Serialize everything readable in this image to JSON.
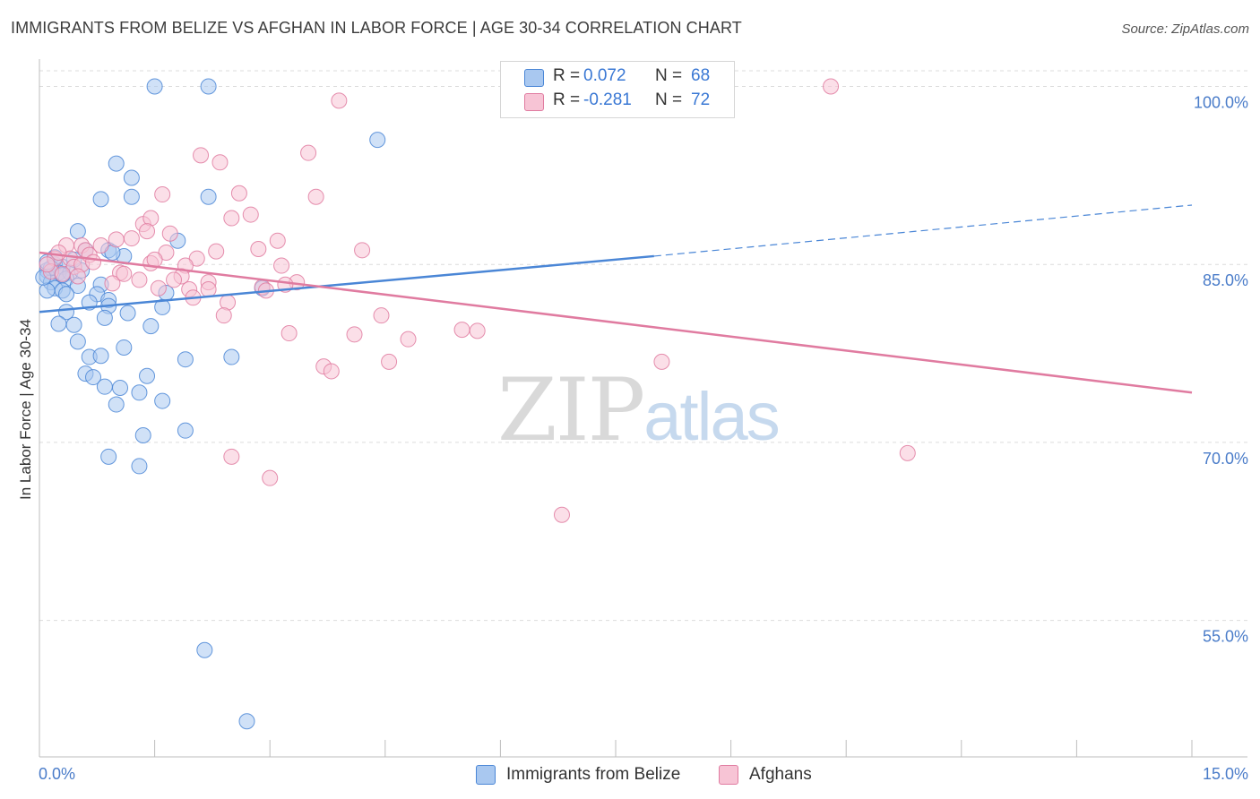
{
  "title": "IMMIGRANTS FROM BELIZE VS AFGHAN IN LABOR FORCE | AGE 30-34 CORRELATION CHART",
  "source": "Source: ZipAtlas.com",
  "watermark": {
    "zip": "ZIP",
    "atlas": "atlas"
  },
  "legend": {
    "rows": [
      {
        "r_label": "R =",
        "r_value": "0.072",
        "n_label": "N =",
        "n_value": "68",
        "color": "#a9c8f0",
        "border": "#4a86d6"
      },
      {
        "r_label": "R =",
        "r_value": "-0.281",
        "n_label": "N =",
        "n_value": "72",
        "color": "#f7c4d5",
        "border": "#e07ba0"
      }
    ]
  },
  "bottom_legend": [
    {
      "label": "Immigrants from Belize",
      "color": "#a9c8f0",
      "border": "#4a86d6"
    },
    {
      "label": "Afghans",
      "color": "#f7c4d5",
      "border": "#e07ba0"
    }
  ],
  "chart_data": {
    "type": "scatter",
    "title": "IMMIGRANTS FROM BELIZE VS AFGHAN IN LABOR FORCE | AGE 30-34 CORRELATION CHART",
    "xlabel": "",
    "ylabel": "In Labor Force | Age 30-34",
    "xlim": [
      0,
      15
    ],
    "ylim": [
      43.5,
      102
    ],
    "x_tick_labels": [
      {
        "value": 0,
        "label": "0.0%"
      },
      {
        "value": 15,
        "label": "15.0%"
      }
    ],
    "y_ticks": [
      {
        "value": 100,
        "label": "100.0%"
      },
      {
        "value": 85,
        "label": "85.0%"
      },
      {
        "value": 70,
        "label": "70.0%"
      },
      {
        "value": 55,
        "label": "55.0%"
      }
    ],
    "x_minor_ticks": [
      1.5,
      3,
      4.5,
      6,
      7.5,
      9,
      10.5,
      12,
      13.5,
      15
    ],
    "series": [
      {
        "name": "Immigrants from Belize",
        "color": "#4a86d6",
        "fill": "#a9c8f0",
        "trend": {
          "x0": 0,
          "y0": 81.0,
          "x1": 8.0,
          "y1": 85.7,
          "dash_x1": 15,
          "dash_y1": 90.0
        },
        "points": [
          [
            1.5,
            100
          ],
          [
            2.2,
            100
          ],
          [
            4.4,
            95.5
          ],
          [
            1.0,
            93.5
          ],
          [
            1.2,
            92.3
          ],
          [
            0.8,
            90.5
          ],
          [
            1.2,
            90.7
          ],
          [
            2.2,
            90.7
          ],
          [
            0.5,
            87.8
          ],
          [
            1.8,
            87.0
          ],
          [
            0.9,
            86.2
          ],
          [
            0.6,
            86.2
          ],
          [
            1.1,
            85.7
          ],
          [
            0.2,
            85.0
          ],
          [
            0.3,
            84.8
          ],
          [
            0.1,
            84.5
          ],
          [
            0.25,
            84.3
          ],
          [
            0.4,
            84.3
          ],
          [
            0.55,
            84.5
          ],
          [
            0.1,
            84.0
          ],
          [
            0.35,
            83.8
          ],
          [
            0.15,
            83.5
          ],
          [
            0.8,
            83.3
          ],
          [
            0.5,
            83.2
          ],
          [
            0.2,
            83.0
          ],
          [
            0.3,
            82.8
          ],
          [
            0.1,
            82.8
          ],
          [
            0.35,
            82.5
          ],
          [
            0.75,
            82.5
          ],
          [
            1.65,
            82.6
          ],
          [
            0.9,
            82.0
          ],
          [
            0.65,
            81.8
          ],
          [
            0.9,
            81.5
          ],
          [
            1.6,
            81.4
          ],
          [
            0.35,
            81.0
          ],
          [
            1.15,
            80.9
          ],
          [
            0.85,
            80.5
          ],
          [
            0.25,
            80.0
          ],
          [
            0.45,
            79.9
          ],
          [
            1.45,
            79.8
          ],
          [
            0.5,
            78.5
          ],
          [
            1.1,
            78.0
          ],
          [
            0.65,
            77.2
          ],
          [
            0.8,
            77.3
          ],
          [
            1.9,
            77.0
          ],
          [
            2.5,
            77.2
          ],
          [
            0.6,
            75.8
          ],
          [
            1.4,
            75.6
          ],
          [
            0.7,
            75.5
          ],
          [
            0.85,
            74.7
          ],
          [
            1.05,
            74.6
          ],
          [
            1.3,
            74.2
          ],
          [
            1.6,
            73.5
          ],
          [
            1.0,
            73.2
          ],
          [
            1.35,
            70.6
          ],
          [
            1.9,
            71.0
          ],
          [
            0.9,
            68.8
          ],
          [
            1.3,
            68.0
          ],
          [
            2.9,
            83.0
          ],
          [
            0.95,
            86.0
          ],
          [
            0.2,
            85.6
          ],
          [
            0.45,
            85.4
          ],
          [
            0.15,
            84.7
          ],
          [
            0.05,
            83.9
          ],
          [
            0.3,
            84.1
          ],
          [
            2.15,
            52.5
          ],
          [
            2.7,
            46.5
          ],
          [
            0.1,
            85.2
          ]
        ]
      },
      {
        "name": "Afghans",
        "color": "#e07ba0",
        "fill": "#f7c4d5",
        "trend": {
          "x0": 0,
          "y0": 86.0,
          "x1": 15,
          "y1": 74.2
        },
        "points": [
          [
            10.3,
            100
          ],
          [
            3.9,
            98.8
          ],
          [
            2.1,
            94.2
          ],
          [
            2.35,
            93.6
          ],
          [
            3.5,
            94.4
          ],
          [
            1.6,
            90.9
          ],
          [
            2.6,
            91.0
          ],
          [
            3.6,
            90.7
          ],
          [
            2.75,
            89.2
          ],
          [
            2.5,
            88.9
          ],
          [
            1.35,
            88.4
          ],
          [
            1.45,
            88.9
          ],
          [
            1.4,
            87.8
          ],
          [
            1.7,
            87.6
          ],
          [
            1.2,
            87.2
          ],
          [
            1.0,
            87.1
          ],
          [
            0.35,
            86.6
          ],
          [
            0.55,
            86.6
          ],
          [
            3.1,
            87.0
          ],
          [
            2.85,
            86.3
          ],
          [
            4.2,
            86.2
          ],
          [
            2.3,
            86.1
          ],
          [
            0.6,
            86.2
          ],
          [
            1.65,
            86.0
          ],
          [
            0.2,
            85.5
          ],
          [
            0.4,
            85.5
          ],
          [
            2.05,
            85.5
          ],
          [
            1.45,
            85.1
          ],
          [
            1.9,
            84.9
          ],
          [
            3.15,
            84.9
          ],
          [
            0.15,
            84.4
          ],
          [
            0.45,
            84.8
          ],
          [
            1.05,
            84.3
          ],
          [
            1.85,
            84.0
          ],
          [
            2.2,
            83.5
          ],
          [
            1.3,
            83.7
          ],
          [
            1.75,
            83.7
          ],
          [
            3.35,
            83.5
          ],
          [
            3.2,
            83.3
          ],
          [
            2.9,
            83.1
          ],
          [
            0.55,
            85.0
          ],
          [
            0.95,
            83.4
          ],
          [
            1.55,
            83.0
          ],
          [
            1.95,
            82.9
          ],
          [
            2.2,
            82.9
          ],
          [
            2.95,
            82.8
          ],
          [
            2.0,
            82.2
          ],
          [
            2.45,
            81.8
          ],
          [
            2.4,
            80.7
          ],
          [
            4.45,
            80.7
          ],
          [
            3.25,
            79.2
          ],
          [
            4.1,
            79.1
          ],
          [
            5.5,
            79.5
          ],
          [
            5.7,
            79.4
          ],
          [
            4.8,
            78.7
          ],
          [
            3.7,
            76.4
          ],
          [
            3.8,
            76.0
          ],
          [
            4.55,
            76.8
          ],
          [
            8.1,
            76.8
          ],
          [
            2.5,
            68.8
          ],
          [
            3.0,
            67.0
          ],
          [
            11.3,
            69.1
          ],
          [
            6.8,
            63.9
          ],
          [
            0.65,
            85.8
          ],
          [
            0.25,
            86.0
          ],
          [
            0.1,
            85.0
          ],
          [
            0.8,
            86.6
          ],
          [
            0.3,
            84.2
          ],
          [
            0.5,
            84.0
          ],
          [
            1.1,
            84.2
          ],
          [
            0.7,
            85.2
          ],
          [
            1.5,
            85.4
          ]
        ]
      }
    ],
    "grid": true,
    "legend_position": "top-center"
  }
}
